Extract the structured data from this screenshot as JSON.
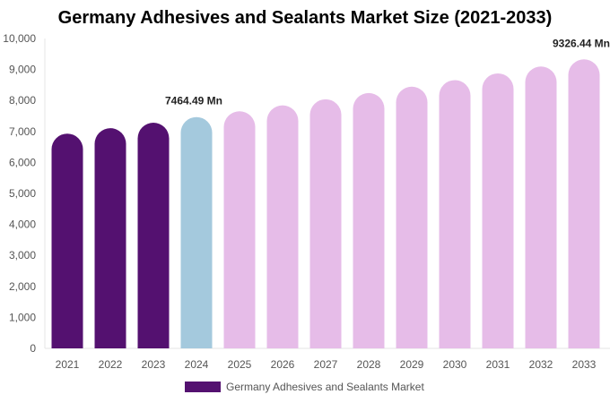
{
  "chart_data": {
    "type": "bar",
    "title": "Germany Adhesives and Sealants Market Size (2021-2033)",
    "categories": [
      "2021",
      "2022",
      "2023",
      "2024",
      "2025",
      "2026",
      "2027",
      "2028",
      "2029",
      "2030",
      "2031",
      "2032",
      "2033"
    ],
    "series": [
      {
        "name": "Germany Adhesives and Sealants Market",
        "values": [
          6931,
          7105,
          7282,
          7464.49,
          7651,
          7843,
          8039,
          8240,
          8446,
          8657,
          8874,
          9096,
          9326.44
        ]
      }
    ],
    "data_labels": [
      {
        "category": "2024",
        "text": "7464.49 Mn"
      },
      {
        "category": "2033",
        "text": "9326.44 Mn"
      }
    ],
    "ylim": [
      0,
      10000
    ],
    "yticks": [
      "0",
      "1,000",
      "2,000",
      "3,000",
      "4,000",
      "5,000",
      "6,000",
      "7,000",
      "8,000",
      "9,000",
      "10,000"
    ],
    "xlabel": "",
    "ylabel": "",
    "grid": false,
    "legend_position": "bottom",
    "colors": {
      "historical": "#541170",
      "current": "#a4c9dd",
      "forecast": "#e6bce8"
    }
  }
}
